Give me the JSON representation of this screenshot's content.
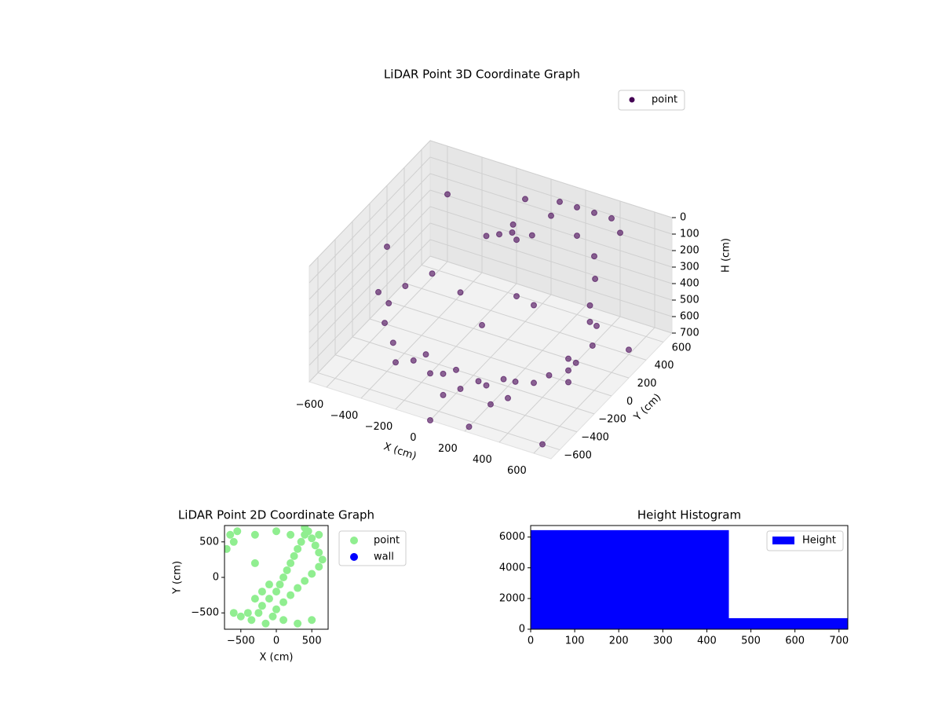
{
  "chart_data": [
    {
      "type": "scatter3d",
      "title": "LiDAR Point 3D Coordinate Graph",
      "xlabel": "X (cm)",
      "ylabel": "Y (cm)",
      "zlabel": "H (cm)",
      "xlim": [
        -700,
        700
      ],
      "ylim": [
        -700,
        700
      ],
      "zlim": [
        0,
        700
      ],
      "zinvert": true,
      "xticks": [
        {
          "value": -600,
          "label": "−600"
        },
        {
          "value": -400,
          "label": "−400"
        },
        {
          "value": -200,
          "label": "−200"
        },
        0,
        200,
        400,
        600
      ],
      "yticks": [
        {
          "value": -600,
          "label": "−600"
        },
        {
          "value": -400,
          "label": "−400"
        },
        {
          "value": -200,
          "label": "−200"
        },
        0,
        200,
        400,
        600
      ],
      "zticks": [
        0,
        100,
        200,
        300,
        400,
        500,
        600,
        700
      ],
      "grid": true,
      "legend": "upper right",
      "series": [
        {
          "name": "point",
          "color": "#440154",
          "x": [
            -476,
            -542,
            -542,
            -476,
            -354,
            -188,
            0,
            188,
            354,
            476,
            542,
            542,
            476,
            500,
            500,
            480,
            450,
            -100,
            -50,
            0,
            -150,
            50,
            -80,
            -200,
            -100,
            0,
            100,
            200,
            -300,
            300,
            150,
            -50,
            250,
            400,
            350,
            450,
            -400,
            300,
            200,
            100,
            400,
            500,
            300,
            100,
            -100,
            -650,
            -600,
            200,
            0,
            600,
            650,
            -500,
            100,
            -200,
            0,
            250
          ],
          "y": [
            275,
            96,
            -96,
            -275,
            -421,
            -517,
            -550,
            -517,
            -421,
            -275,
            -96,
            96,
            275,
            150,
            150,
            250,
            300,
            300,
            350,
            300,
            250,
            380,
            420,
            -300,
            -200,
            -350,
            -250,
            -400,
            -150,
            -100,
            -150,
            -450,
            -300,
            100,
            200,
            0,
            -300,
            600,
            600,
            600,
            600,
            500,
            400,
            500,
            600,
            100,
            -100,
            -650,
            -700,
            -600,
            300,
            500,
            100,
            50,
            -100,
            0
          ],
          "z": [
            500,
            500,
            500,
            500,
            500,
            500,
            500,
            500,
            500,
            500,
            500,
            500,
            500,
            400,
            300,
            200,
            100,
            150,
            150,
            150,
            150,
            150,
            150,
            700,
            700,
            700,
            700,
            700,
            700,
            700,
            700,
            700,
            700,
            700,
            700,
            700,
            700,
            50,
            50,
            50,
            50,
            50,
            80,
            80,
            100,
            300,
            450,
            700,
            700,
            700,
            600,
            150,
            350,
            400,
            450,
            300
          ]
        }
      ]
    },
    {
      "type": "scatter",
      "title": "LiDAR Point 2D Coordinate Graph",
      "xlabel": "X (cm)",
      "ylabel": "Y (cm)",
      "xlim": [
        -730,
        730
      ],
      "ylim": [
        -730,
        730
      ],
      "xticks": [
        {
          "value": -500,
          "label": "−500"
        },
        0,
        500
      ],
      "yticks": [
        {
          "value": -500,
          "label": "−500"
        },
        0,
        500
      ],
      "legend": "outside right",
      "series": [
        {
          "name": "point",
          "color": "#90ee90",
          "x": [
            -650,
            -600,
            -700,
            -550,
            -300,
            -250,
            -200,
            -100,
            0,
            50,
            100,
            150,
            200,
            250,
            300,
            350,
            400,
            450,
            500,
            550,
            600,
            650,
            -400,
            -350,
            -150,
            -50,
            0,
            100,
            200,
            300,
            400,
            500,
            600,
            -600,
            -500,
            -300,
            -100,
            100,
            300,
            500,
            0,
            200,
            400,
            600,
            -200,
            -300
          ],
          "y": [
            600,
            500,
            400,
            650,
            600,
            -500,
            -400,
            -300,
            -200,
            -100,
            0,
            100,
            200,
            300,
            400,
            500,
            600,
            650,
            550,
            450,
            350,
            250,
            -500,
            -600,
            -650,
            -550,
            -450,
            -350,
            -250,
            -150,
            -50,
            50,
            150,
            -500,
            -550,
            -300,
            -100,
            -600,
            -650,
            -600,
            650,
            600,
            700,
            600,
            -200,
            200
          ]
        },
        {
          "name": "wall",
          "color": "#0000ff",
          "x": [],
          "y": []
        }
      ]
    },
    {
      "type": "histogram",
      "title": "Height Histogram",
      "bins": [
        0,
        450,
        720
      ],
      "xlim": [
        0,
        720
      ],
      "xticks": [
        0,
        100,
        200,
        300,
        400,
        500,
        600,
        700
      ],
      "ylim": [
        0,
        6750
      ],
      "yticks": [
        0,
        2000,
        4000,
        6000
      ],
      "legend": "upper right",
      "series": [
        {
          "name": "Height",
          "color": "#0000ff",
          "values": [
            6450,
            720
          ]
        }
      ]
    }
  ]
}
